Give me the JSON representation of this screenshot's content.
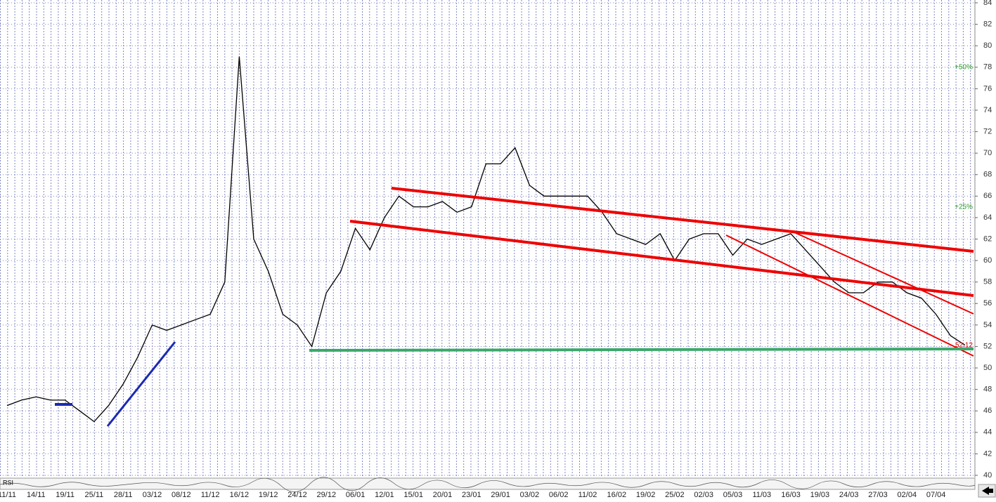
{
  "chart_data": {
    "type": "line",
    "categories": [
      "11/11",
      null,
      "14/11",
      null,
      "19/11",
      null,
      "25/11",
      null,
      "28/11",
      null,
      "03/12",
      null,
      "08/12",
      null,
      "11/12",
      null,
      "16/12",
      null,
      "19/12",
      null,
      "24/12",
      null,
      "29/12",
      null,
      "06/01",
      null,
      "12/01",
      null,
      "15/01",
      null,
      "20/01",
      null,
      "23/01",
      null,
      "29/01",
      null,
      "03/02",
      null,
      "06/02",
      null,
      "11/02",
      null,
      "16/02",
      null,
      "19/02",
      null,
      "25/02",
      null,
      "02/03",
      null,
      "05/03",
      null,
      "11/03",
      null,
      "16/03",
      null,
      "19/03",
      null,
      "24/03",
      null,
      "27/03",
      null,
      "02/04",
      null,
      "07/04",
      null,
      null
    ],
    "series": [
      {
        "color": "#000000",
        "values": [
          46.5,
          47,
          47.3,
          47,
          47,
          46,
          45,
          46.5,
          48.5,
          51,
          54,
          53.5,
          54,
          54.5,
          55,
          58,
          79,
          62,
          59,
          55,
          54,
          52,
          57,
          59,
          63,
          61,
          64,
          66,
          65,
          65,
          65.5,
          64.5,
          65,
          69,
          69,
          70.5,
          67,
          66,
          66,
          66,
          66,
          64.5,
          62.5,
          62,
          61.5,
          62.5,
          60,
          62,
          62.5,
          62.5,
          60.5,
          62,
          61.5,
          62,
          62.5,
          61,
          59.5,
          58,
          57,
          57,
          58,
          58,
          57,
          56.5,
          55,
          53,
          52.12
        ]
      }
    ],
    "ylim": [
      40,
      84
    ],
    "yticks": [
      40,
      42,
      44,
      46,
      48,
      50,
      52,
      54,
      56,
      58,
      60,
      62,
      64,
      66,
      68,
      70,
      72,
      74,
      76,
      78,
      80,
      82,
      84
    ],
    "grid": true,
    "annotations": [
      {
        "text": "+50%",
        "y": 78,
        "color": "#2a9a2a"
      },
      {
        "text": "+25%",
        "y": 65,
        "color": "#2a9a2a"
      },
      {
        "text": "52.12",
        "y": 52.12,
        "color": "#cc0000"
      }
    ],
    "indicator_label": "RSI"
  }
}
